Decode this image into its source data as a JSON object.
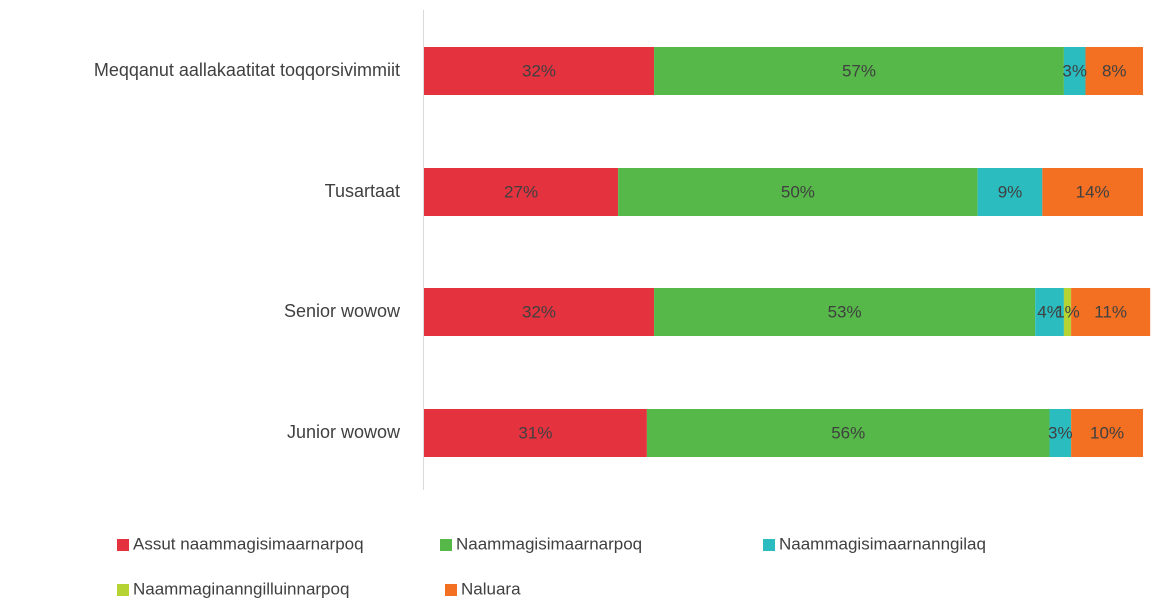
{
  "chart_data": {
    "type": "bar",
    "orientation": "horizontal",
    "stacked": true,
    "categories": [
      "Meqqanut aallakaatitat toqqorsivimmiit",
      "Tusartaat",
      "Senior wowow",
      "Junior wowow"
    ],
    "xlim": [
      0,
      100
    ],
    "series": [
      {
        "name": "Assut naammagisimaarnarpoq",
        "color": "#e4323f",
        "values": [
          32,
          27,
          32,
          31
        ],
        "value_labels": [
          "32%",
          "27%",
          "32%",
          "31%"
        ]
      },
      {
        "name": "Naammagisimaarnarpoq",
        "color": "#55b848",
        "values": [
          57,
          50,
          53,
          56
        ],
        "value_labels": [
          "57%",
          "50%",
          "53%",
          "56%"
        ]
      },
      {
        "name": "Naammagisimaarnanngilaq",
        "color": "#2bbcbf",
        "values": [
          3,
          9,
          4,
          3
        ],
        "value_labels": [
          "3%",
          "9%",
          "4%",
          "3%"
        ]
      },
      {
        "name": "Naammaginanngilluinnarpoq",
        "color": "#b6d334",
        "values": [
          null,
          null,
          1,
          null
        ],
        "value_labels": [
          null,
          null,
          "1%",
          null
        ]
      },
      {
        "name": "Naluara",
        "color": "#f36f21",
        "values": [
          8,
          14,
          11,
          10
        ],
        "value_labels": [
          "8%",
          "14%",
          "11%",
          "10%"
        ]
      }
    ],
    "legend": "bottom"
  }
}
